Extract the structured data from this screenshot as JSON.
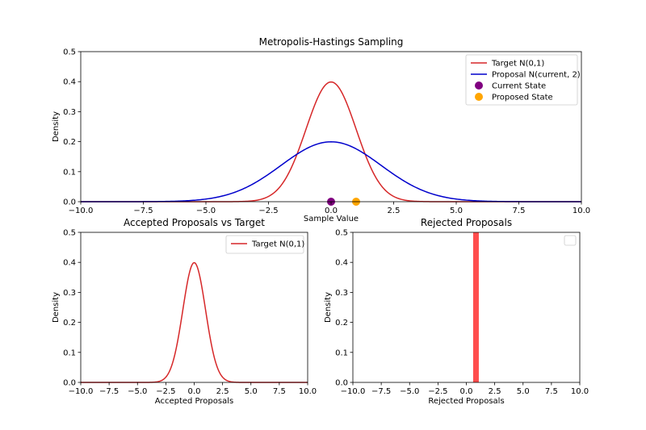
{
  "chart_data": [
    {
      "type": "line",
      "title": "Metropolis-Hastings Sampling",
      "xlabel": "Sample Value",
      "ylabel": "Density",
      "xlim": [
        -10,
        10
      ],
      "ylim": [
        0,
        0.5
      ],
      "xticks": [
        -10,
        -7.5,
        -5,
        -2.5,
        0,
        2.5,
        5,
        7.5,
        10
      ],
      "xtick_labels": [
        "−10.0",
        "−7.5",
        "−5.0",
        "−2.5",
        "0.0",
        "2.5",
        "5.0",
        "7.5",
        "10.0"
      ],
      "yticks": [
        0,
        0.1,
        0.2,
        0.3,
        0.4,
        0.5
      ],
      "ytick_labels": [
        "0.0",
        "0.1",
        "0.2",
        "0.3",
        "0.4",
        "0.5"
      ],
      "legend_position": "top-right",
      "series": [
        {
          "name": "Target N(0,1)",
          "kind": "normal-pdf",
          "mean": 0,
          "sd": 1,
          "color": "#d62728"
        },
        {
          "name": "Proposal N(current, 2)",
          "kind": "normal-pdf",
          "mean": 0,
          "sd": 2,
          "color": "#0000cc"
        }
      ],
      "points": [
        {
          "name": "Current State",
          "x": 0,
          "y": 0,
          "color": "#800080"
        },
        {
          "name": "Proposed State",
          "x": 1.0,
          "y": 0,
          "color": "#ffa500"
        }
      ]
    },
    {
      "type": "line",
      "title": "Accepted Proposals vs Target",
      "xlabel": "Accepted Proposals",
      "ylabel": "Density",
      "xlim": [
        -10,
        10
      ],
      "ylim": [
        0,
        0.5
      ],
      "xticks": [
        -10,
        -7.5,
        -5,
        -2.5,
        0,
        2.5,
        5,
        7.5,
        10
      ],
      "xtick_labels": [
        "−10.0",
        "−7.5",
        "−5.0",
        "−2.5",
        "0.0",
        "2.5",
        "5.0",
        "7.5",
        "10.0"
      ],
      "yticks": [
        0,
        0.1,
        0.2,
        0.3,
        0.4,
        0.5
      ],
      "ytick_labels": [
        "0.0",
        "0.1",
        "0.2",
        "0.3",
        "0.4",
        "0.5"
      ],
      "legend_position": "top-right",
      "series": [
        {
          "name": "Target N(0,1)",
          "kind": "normal-pdf",
          "mean": 0,
          "sd": 1,
          "color": "#d62728"
        }
      ]
    },
    {
      "type": "bar",
      "title": "Rejected Proposals",
      "xlabel": "Rejected Proposals",
      "ylabel": "Density",
      "xlim": [
        -10,
        10
      ],
      "ylim": [
        0,
        0.5
      ],
      "xticks": [
        -10,
        -7.5,
        -5,
        -2.5,
        0,
        2.5,
        5,
        7.5,
        10
      ],
      "xtick_labels": [
        "−10.0",
        "−7.5",
        "−5.0",
        "−2.5",
        "0.0",
        "2.5",
        "5.0",
        "7.5",
        "10.0"
      ],
      "yticks": [
        0,
        0.1,
        0.2,
        0.3,
        0.4,
        0.5
      ],
      "ytick_labels": [
        "0.0",
        "0.1",
        "0.2",
        "0.3",
        "0.4",
        "0.5"
      ],
      "legend_position": "top-right",
      "bars": [
        {
          "x0": 0.6,
          "x1": 1.1,
          "value": 0.5,
          "color": "#ff4d4d"
        }
      ]
    }
  ]
}
